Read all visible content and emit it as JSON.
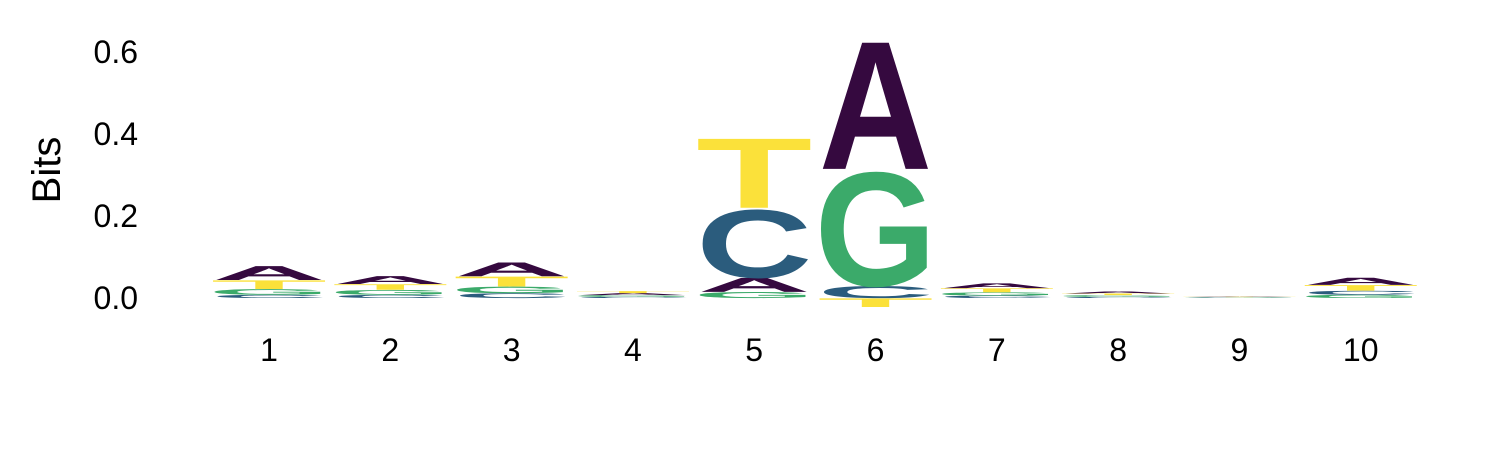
{
  "chart_data": {
    "type": "sequence-logo",
    "ylabel": "Bits",
    "ylim": [
      -0.04,
      0.66
    ],
    "yticks": [
      "0.0",
      "0.2",
      "0.4",
      "0.6"
    ],
    "ytick_values": [
      0.0,
      0.2,
      0.4,
      0.6
    ],
    "positions": [
      "1",
      "2",
      "3",
      "4",
      "5",
      "6",
      "7",
      "8",
      "9",
      "10"
    ],
    "colors": {
      "A": "#35093f",
      "C": "#2b5c7d",
      "G": "#3baa6a",
      "T": "#fbe13a"
    },
    "stacks": [
      [
        {
          "letter": "C",
          "pos": 0.008
        },
        {
          "letter": "G",
          "pos": 0.014
        },
        {
          "letter": "T",
          "pos": 0.022
        },
        {
          "letter": "A",
          "pos": 0.035
        }
      ],
      [
        {
          "letter": "C",
          "pos": 0.008
        },
        {
          "letter": "G",
          "pos": 0.012
        },
        {
          "letter": "T",
          "pos": 0.014
        },
        {
          "letter": "A",
          "pos": 0.02
        }
      ],
      [
        {
          "letter": "C",
          "pos": 0.012
        },
        {
          "letter": "G",
          "pos": 0.016
        },
        {
          "letter": "T",
          "pos": 0.025
        },
        {
          "letter": "A",
          "pos": 0.035
        }
      ],
      [
        {
          "letter": "C",
          "pos": 0.003
        },
        {
          "letter": "G",
          "pos": 0.004
        },
        {
          "letter": "A",
          "pos": 0.005
        },
        {
          "letter": "T",
          "pos": 0.005
        }
      ],
      [
        {
          "letter": "G",
          "pos": 0.015
        },
        {
          "letter": "A",
          "pos": 0.035
        },
        {
          "letter": "C",
          "neg": 0.0,
          "pos": 0.17
        },
        {
          "letter": "T",
          "pos": 0.175
        }
      ],
      [
        {
          "letter": "T",
          "neg": 0.022
        },
        {
          "letter": "C",
          "pos": 0.03
        },
        {
          "letter": "G",
          "pos": 0.285
        },
        {
          "letter": "A",
          "pos": 0.32
        }
      ],
      [
        {
          "letter": "C",
          "pos": 0.006
        },
        {
          "letter": "G",
          "pos": 0.008
        },
        {
          "letter": "T",
          "pos": 0.01
        },
        {
          "letter": "A",
          "pos": 0.012
        }
      ],
      [
        {
          "letter": "C",
          "pos": 0.003
        },
        {
          "letter": "G",
          "pos": 0.004
        },
        {
          "letter": "T",
          "pos": 0.004
        },
        {
          "letter": "A",
          "pos": 0.005
        }
      ],
      [
        {
          "letter": "C",
          "pos": 0.001
        },
        {
          "letter": "G",
          "pos": 0.001
        },
        {
          "letter": "T",
          "pos": 0.001
        },
        {
          "letter": "A",
          "pos": 0.001
        }
      ],
      [
        {
          "letter": "G",
          "pos": 0.008
        },
        {
          "letter": "C",
          "pos": 0.01
        },
        {
          "letter": "T",
          "pos": 0.014
        },
        {
          "letter": "A",
          "pos": 0.018
        }
      ]
    ]
  }
}
